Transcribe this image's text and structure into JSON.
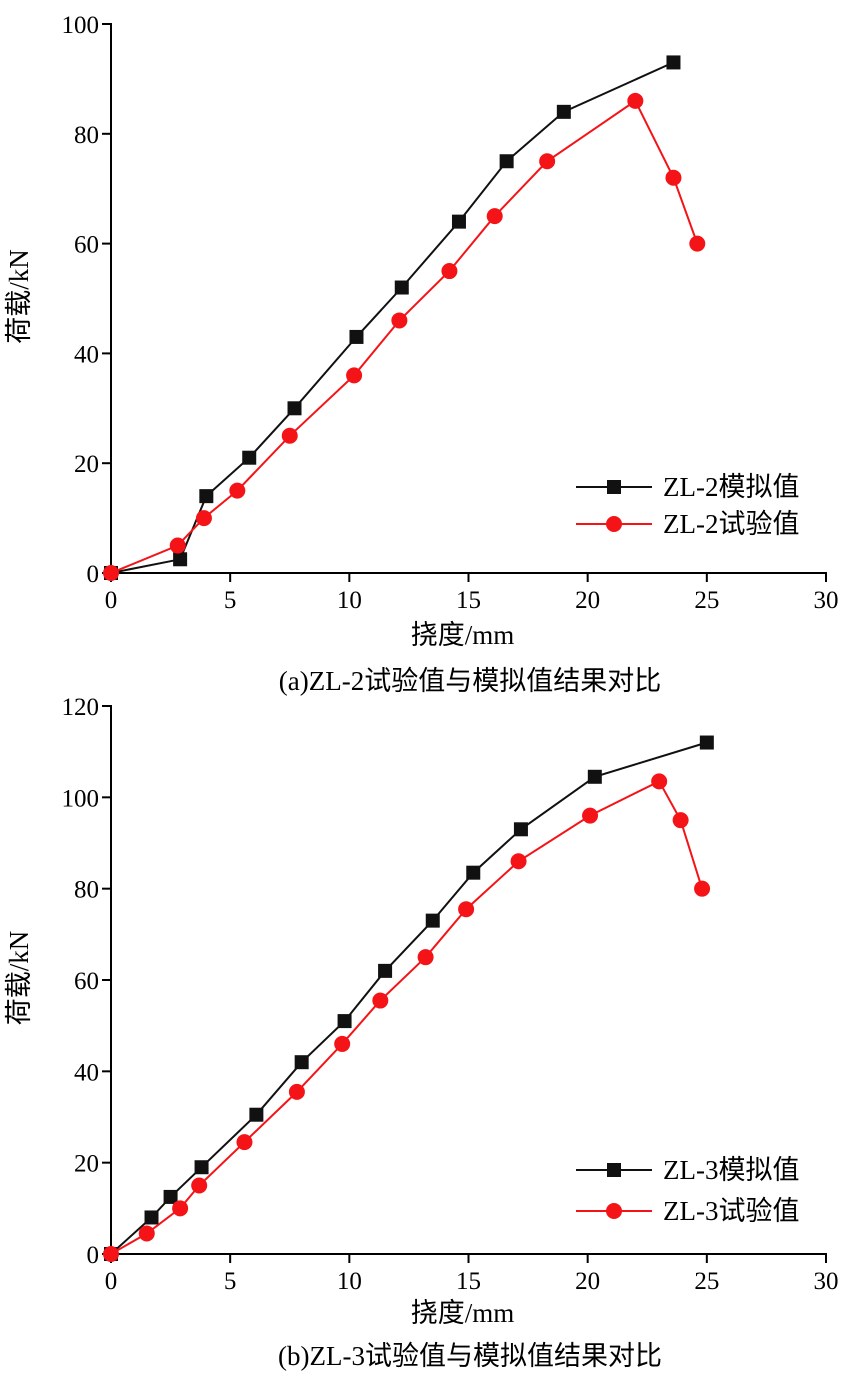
{
  "colors": {
    "sim": "#111111",
    "test": "#f41418",
    "axis": "#000000"
  },
  "chart_data": [
    {
      "type": "line",
      "caption": "(a)ZL-2试验值与模拟值结果对比",
      "xlabel": "挠度/mm",
      "ylabel": "荷载/kN",
      "xlim": [
        0,
        30
      ],
      "ylim": [
        0,
        100
      ],
      "xticks": [
        0,
        5,
        10,
        15,
        20,
        25,
        30
      ],
      "yticks": [
        0,
        20,
        40,
        60,
        80,
        100
      ],
      "legend_position": "bottom-right",
      "series": [
        {
          "name": "ZL-2模拟值",
          "marker": "square",
          "color": "#111111",
          "x": [
            0,
            2.9,
            4.0,
            5.8,
            7.7,
            10.3,
            12.2,
            14.6,
            16.6,
            19.0,
            23.6
          ],
          "y": [
            0,
            2.5,
            14,
            21,
            30,
            43,
            52,
            64,
            75,
            84,
            93
          ]
        },
        {
          "name": "ZL-2试验值",
          "marker": "circle",
          "color": "#f41418",
          "x": [
            0,
            2.8,
            3.9,
            5.3,
            7.5,
            10.2,
            12.1,
            14.2,
            16.1,
            18.3,
            22.0,
            23.6,
            24.6
          ],
          "y": [
            0,
            5,
            10,
            15,
            25,
            36,
            46,
            55,
            65,
            75,
            86,
            72,
            60
          ]
        }
      ]
    },
    {
      "type": "line",
      "caption": "(b)ZL-3试验值与模拟值结果对比",
      "xlabel": "挠度/mm",
      "ylabel": "荷载/kN",
      "xlim": [
        0,
        30
      ],
      "ylim": [
        0,
        120
      ],
      "xticks": [
        0,
        5,
        10,
        15,
        20,
        25,
        30
      ],
      "yticks": [
        0,
        20,
        40,
        60,
        80,
        100,
        120
      ],
      "legend_position": "bottom-right",
      "series": [
        {
          "name": "ZL-3模拟值",
          "marker": "square",
          "color": "#111111",
          "x": [
            0,
            1.7,
            2.5,
            3.8,
            6.1,
            8.0,
            9.8,
            11.5,
            13.5,
            15.2,
            17.2,
            20.3,
            25.0
          ],
          "y": [
            0,
            8,
            12.5,
            19,
            30.5,
            42,
            51,
            62,
            73,
            83.5,
            93,
            104.5,
            112
          ]
        },
        {
          "name": "ZL-3试验值",
          "marker": "circle",
          "color": "#f41418",
          "x": [
            0,
            1.5,
            2.9,
            3.7,
            5.6,
            7.8,
            9.7,
            11.3,
            13.2,
            14.9,
            17.1,
            20.1,
            23.0,
            23.9,
            24.8
          ],
          "y": [
            0,
            4.5,
            10,
            15,
            24.5,
            35.5,
            46,
            55.5,
            65,
            75.5,
            86,
            96,
            103.5,
            95,
            80
          ]
        }
      ]
    }
  ]
}
